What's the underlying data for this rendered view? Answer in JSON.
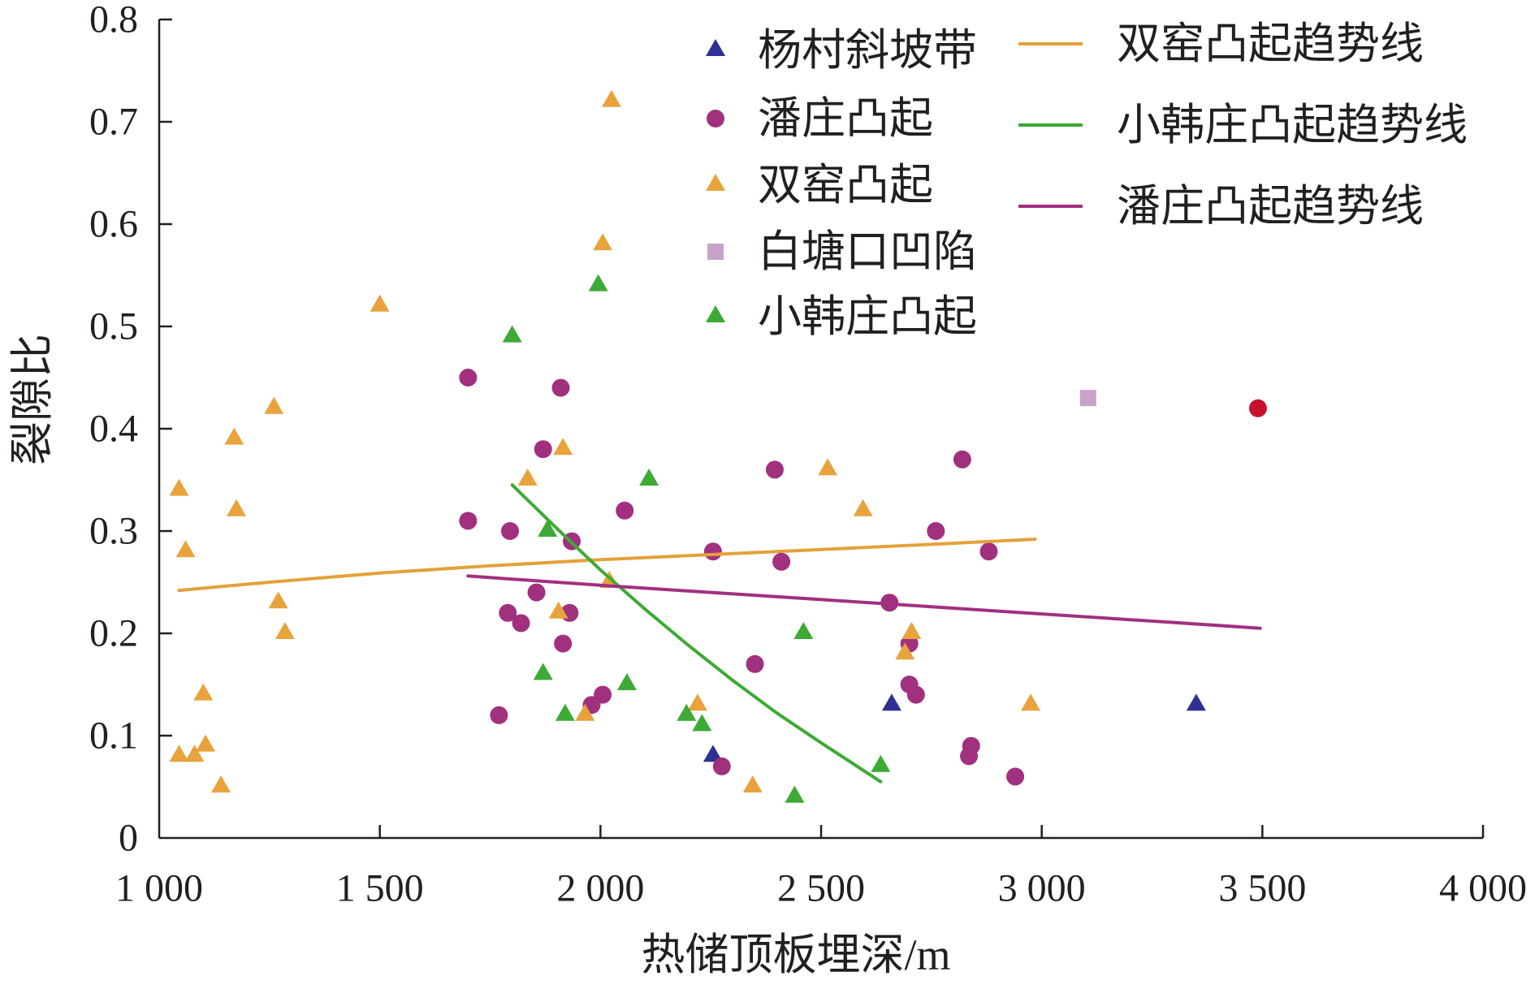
{
  "chart_data": {
    "type": "scatter",
    "xlabel": "热储顶板埋深/m",
    "ylabel": "裂隙比",
    "xlim": [
      1000,
      4000
    ],
    "ylim": [
      0,
      0.8
    ],
    "x_ticks": [
      1000,
      1500,
      2000,
      2500,
      3000,
      3500,
      4000
    ],
    "x_tick_labels": [
      "1 000",
      "1 500",
      "2 000",
      "2 500",
      "3 000",
      "3 500",
      "4 000"
    ],
    "y_ticks": [
      0,
      0.1,
      0.2,
      0.3,
      0.4,
      0.5,
      0.6,
      0.7,
      0.8
    ],
    "y_tick_labels": [
      "0",
      "0.1",
      "0.2",
      "0.3",
      "0.4",
      "0.5",
      "0.6",
      "0.7",
      "0.8"
    ],
    "grid": false,
    "legend_position": "top-right",
    "series": [
      {
        "name": "杨村斜坡带",
        "marker": "triangle",
        "color": "#2E3192",
        "points": [
          [
            2255,
            0.08
          ],
          [
            2660,
            0.13
          ],
          [
            3350,
            0.13
          ]
        ]
      },
      {
        "name": "潘庄凸起",
        "marker": "circle",
        "color": "#A1307F",
        "points": [
          [
            1700,
            0.45
          ],
          [
            1910,
            0.44
          ],
          [
            1870,
            0.38
          ],
          [
            1700,
            0.31
          ],
          [
            1795,
            0.3
          ],
          [
            1935,
            0.29
          ],
          [
            2055,
            0.32
          ],
          [
            1855,
            0.24
          ],
          [
            1790,
            0.22
          ],
          [
            1820,
            0.21
          ],
          [
            1930,
            0.22
          ],
          [
            1915,
            0.19
          ],
          [
            1770,
            0.12
          ],
          [
            1980,
            0.13
          ],
          [
            2005,
            0.14
          ],
          [
            2255,
            0.28
          ],
          [
            2395,
            0.36
          ],
          [
            2410,
            0.27
          ],
          [
            2350,
            0.17
          ],
          [
            2275,
            0.07
          ],
          [
            2655,
            0.23
          ],
          [
            2700,
            0.19
          ],
          [
            2700,
            0.15
          ],
          [
            2715,
            0.14
          ],
          [
            2820,
            0.37
          ],
          [
            2760,
            0.3
          ],
          [
            2880,
            0.28
          ],
          [
            2840,
            0.09
          ],
          [
            2835,
            0.08
          ],
          [
            2940,
            0.06
          ]
        ]
      },
      {
        "name": "双窑凸起",
        "marker": "triangle",
        "color": "#E8A33D",
        "points": [
          [
            1045,
            0.34
          ],
          [
            1060,
            0.28
          ],
          [
            1170,
            0.39
          ],
          [
            1175,
            0.32
          ],
          [
            1260,
            0.42
          ],
          [
            1500,
            0.52
          ],
          [
            1270,
            0.23
          ],
          [
            1285,
            0.2
          ],
          [
            1100,
            0.14
          ],
          [
            1105,
            0.09
          ],
          [
            1045,
            0.08
          ],
          [
            1080,
            0.08
          ],
          [
            1140,
            0.05
          ],
          [
            2025,
            0.72
          ],
          [
            2005,
            0.58
          ],
          [
            1915,
            0.38
          ],
          [
            1835,
            0.35
          ],
          [
            1905,
            0.22
          ],
          [
            2020,
            0.25
          ],
          [
            1965,
            0.12
          ],
          [
            2220,
            0.13
          ],
          [
            2345,
            0.05
          ],
          [
            2515,
            0.36
          ],
          [
            2595,
            0.32
          ],
          [
            2690,
            0.18
          ],
          [
            2705,
            0.2
          ],
          [
            2975,
            0.13
          ]
        ]
      },
      {
        "name": "白塘口凹陷",
        "marker": "square",
        "color": "#C8A2C8",
        "points": [
          [
            3105,
            0.43
          ]
        ]
      },
      {
        "name": "小韩庄凸起",
        "marker": "triangle",
        "color": "#3DAA35",
        "points": [
          [
            1995,
            0.54
          ],
          [
            1800,
            0.49
          ],
          [
            2110,
            0.35
          ],
          [
            1880,
            0.3
          ],
          [
            2460,
            0.2
          ],
          [
            1870,
            0.16
          ],
          [
            2060,
            0.15
          ],
          [
            1920,
            0.12
          ],
          [
            2195,
            0.12
          ],
          [
            2230,
            0.11
          ],
          [
            2635,
            0.07
          ],
          [
            2440,
            0.04
          ]
        ]
      },
      {
        "marker": "circle",
        "color": "#C8102E",
        "points": [
          [
            3490,
            0.42
          ]
        ]
      }
    ],
    "trend_lines": [
      {
        "name": "双窑凸起趋势线",
        "color": "#E3A13B",
        "points": [
          [
            1045,
            0.242
          ],
          [
            1250,
            0.25
          ],
          [
            1500,
            0.259
          ],
          [
            1750,
            0.266
          ],
          [
            2000,
            0.272
          ],
          [
            2250,
            0.277
          ],
          [
            2500,
            0.282
          ],
          [
            2750,
            0.287
          ],
          [
            2985,
            0.292
          ]
        ]
      },
      {
        "name": "小韩庄凸起趋势线",
        "color": "#3DAA35",
        "points": [
          [
            1800,
            0.345
          ],
          [
            1900,
            0.303
          ],
          [
            2000,
            0.262
          ],
          [
            2100,
            0.224
          ],
          [
            2200,
            0.188
          ],
          [
            2300,
            0.154
          ],
          [
            2400,
            0.122
          ],
          [
            2500,
            0.093
          ],
          [
            2635,
            0.055
          ]
        ]
      },
      {
        "name": "潘庄凸起趋势线",
        "color": "#A1307F",
        "points": [
          [
            1700,
            0.256
          ],
          [
            2000,
            0.247
          ],
          [
            2250,
            0.24
          ],
          [
            2500,
            0.233
          ],
          [
            2750,
            0.226
          ],
          [
            3000,
            0.219
          ],
          [
            3250,
            0.212
          ],
          [
            3495,
            0.205
          ]
        ]
      }
    ]
  }
}
